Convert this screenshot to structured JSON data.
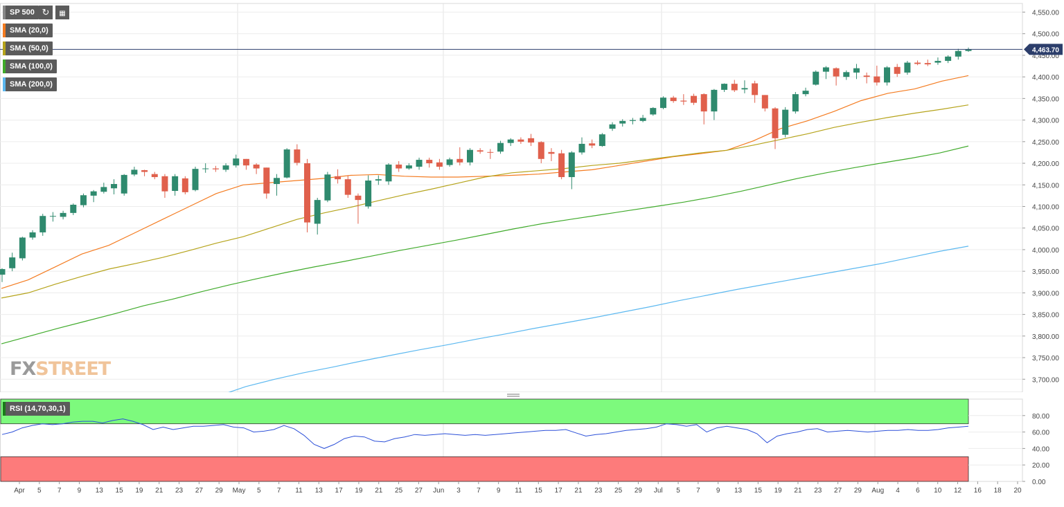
{
  "toolbar": {
    "symbol": "SP 500",
    "refresh_icon": "refresh-icon",
    "settings_icon": "calendar-icon"
  },
  "indicators": [
    {
      "label": "SMA (20,0)",
      "color": "#f47b20"
    },
    {
      "label": "SMA (50,0)",
      "color": "#b5a31a"
    },
    {
      "label": "SMA (100,0)",
      "color": "#3faa2a"
    },
    {
      "label": "SMA (200,0)",
      "color": "#5bb8f0"
    }
  ],
  "rsi_label": "RSI (14,70,30,1)",
  "watermark": {
    "fx": "FX",
    "street": "STREET"
  },
  "chart_data": {
    "type": "candlestick",
    "instrument": "SP 500",
    "price_ylim": [
      3670,
      4570
    ],
    "price_ticks": [
      "4,550.00",
      "4,500.00",
      "4,450.00",
      "4,400.00",
      "4,350.00",
      "4,300.00",
      "4,250.00",
      "4,200.00",
      "4,150.00",
      "4,100.00",
      "4,050.00",
      "4,000.00",
      "3,950.00",
      "3,900.00",
      "3,850.00",
      "3,800.00",
      "3,750.00",
      "3,700.00"
    ],
    "last_price": 4463.7,
    "last_price_label": "4,463.70",
    "x_labels": [
      "Apr",
      "5",
      "7",
      "9",
      "13",
      "15",
      "19",
      "21",
      "23",
      "27",
      "29",
      "May",
      "5",
      "7",
      "11",
      "13",
      "17",
      "19",
      "21",
      "25",
      "27",
      "Jun",
      "3",
      "7",
      "9",
      "11",
      "15",
      "17",
      "21",
      "23",
      "25",
      "29",
      "Jul",
      "5",
      "7",
      "9",
      "13",
      "15",
      "19",
      "21",
      "23",
      "27",
      "29",
      "Aug",
      "4",
      "6",
      "10",
      "12",
      "16",
      "18",
      "20"
    ],
    "candles": [
      [
        3942,
        3955,
        3925,
        3957
      ],
      [
        3957,
        3982,
        3950,
        3993
      ],
      [
        3980,
        4028,
        3975,
        4030
      ],
      [
        4028,
        4040,
        4023,
        4045
      ],
      [
        4040,
        4078,
        4032,
        4083
      ],
      [
        4078,
        4078,
        4065,
        4087
      ],
      [
        4076,
        4085,
        4070,
        4090
      ],
      [
        4085,
        4104,
        4080,
        4107
      ],
      [
        4103,
        4126,
        4098,
        4130
      ],
      [
        4125,
        4135,
        4110,
        4138
      ],
      [
        4134,
        4145,
        4130,
        4155
      ],
      [
        4142,
        4152,
        4128,
        4163
      ],
      [
        4130,
        4173,
        4125,
        4175
      ],
      [
        4174,
        4185,
        4170,
        4192
      ],
      [
        4184,
        4180,
        4170,
        4185
      ],
      [
        4175,
        4168,
        4163,
        4180
      ],
      [
        4170,
        4135,
        4120,
        4175
      ],
      [
        4136,
        4170,
        4125,
        4175
      ],
      [
        4165,
        4133,
        4128,
        4170
      ],
      [
        4138,
        4187,
        4135,
        4192
      ],
      [
        4187,
        4188,
        4178,
        4200
      ],
      [
        4188,
        4186,
        4180,
        4194
      ],
      [
        4185,
        4195,
        4180,
        4200
      ],
      [
        4195,
        4211,
        4190,
        4220
      ],
      [
        4210,
        4195,
        4185,
        4210
      ],
      [
        4197,
        4188,
        4175,
        4200
      ],
      [
        4190,
        4130,
        4118,
        4190
      ],
      [
        4152,
        4166,
        4125,
        4175
      ],
      [
        4167,
        4232,
        4165,
        4235
      ],
      [
        4232,
        4201,
        4195,
        4244
      ],
      [
        4200,
        4063,
        4040,
        4210
      ],
      [
        4060,
        4115,
        4035,
        4120
      ],
      [
        4114,
        4174,
        4110,
        4180
      ],
      [
        4170,
        4163,
        4153,
        4186
      ],
      [
        4163,
        4127,
        4120,
        4172
      ],
      [
        4125,
        4115,
        4060,
        4130
      ],
      [
        4100,
        4160,
        4095,
        4172
      ],
      [
        4160,
        4163,
        4150,
        4172
      ],
      [
        4158,
        4197,
        4150,
        4200
      ],
      [
        4197,
        4188,
        4180,
        4205
      ],
      [
        4188,
        4195,
        4185,
        4200
      ],
      [
        4192,
        4208,
        4185,
        4213
      ],
      [
        4208,
        4200,
        4190,
        4213
      ],
      [
        4202,
        4192,
        4185,
        4210
      ],
      [
        4196,
        4209,
        4192,
        4213
      ],
      [
        4210,
        4202,
        4195,
        4237
      ],
      [
        4202,
        4231,
        4195,
        4235
      ],
      [
        4230,
        4227,
        4222,
        4235
      ],
      [
        4226,
        4225,
        4210,
        4233
      ],
      [
        4227,
        4247,
        4222,
        4252
      ],
      [
        4247,
        4255,
        4240,
        4258
      ],
      [
        4255,
        4250,
        4245,
        4260
      ],
      [
        4258,
        4248,
        4240,
        4268
      ],
      [
        4249,
        4210,
        4200,
        4251
      ],
      [
        4226,
        4222,
        4205,
        4235
      ],
      [
        4223,
        4168,
        4163,
        4231
      ],
      [
        4168,
        4225,
        4140,
        4228
      ],
      [
        4225,
        4245,
        4220,
        4260
      ],
      [
        4246,
        4241,
        4235,
        4255
      ],
      [
        4240,
        4267,
        4238,
        4270
      ],
      [
        4280,
        4290,
        4275,
        4295
      ],
      [
        4292,
        4298,
        4285,
        4302
      ],
      [
        4298,
        4300,
        4290,
        4305
      ],
      [
        4298,
        4305,
        4295,
        4312
      ],
      [
        4313,
        4328,
        4310,
        4330
      ],
      [
        4328,
        4352,
        4325,
        4355
      ],
      [
        4352,
        4344,
        4340,
        4356
      ],
      [
        4345,
        4343,
        4335,
        4360
      ],
      [
        4356,
        4340,
        4335,
        4361
      ],
      [
        4360,
        4320,
        4290,
        4362
      ],
      [
        4320,
        4370,
        4300,
        4372
      ],
      [
        4370,
        4384,
        4365,
        4385
      ],
      [
        4384,
        4369,
        4365,
        4393
      ],
      [
        4371,
        4374,
        4362,
        4392
      ],
      [
        4385,
        4358,
        4340,
        4391
      ],
      [
        4358,
        4327,
        4320,
        4358
      ],
      [
        4327,
        4258,
        4233,
        4330
      ],
      [
        4266,
        4324,
        4260,
        4330
      ],
      [
        4320,
        4360,
        4315,
        4365
      ],
      [
        4360,
        4368,
        4355,
        4375
      ],
      [
        4382,
        4412,
        4380,
        4415
      ],
      [
        4412,
        4422,
        4395,
        4425
      ],
      [
        4420,
        4401,
        4380,
        4422
      ],
      [
        4400,
        4411,
        4393,
        4415
      ],
      [
        4410,
        4420,
        4395,
        4430
      ],
      [
        4403,
        4400,
        4385,
        4410
      ],
      [
        4401,
        4387,
        4380,
        4426
      ],
      [
        4387,
        4422,
        4380,
        4425
      ],
      [
        4423,
        4407,
        4400,
        4430
      ],
      [
        4410,
        4433,
        4405,
        4437
      ],
      [
        4433,
        4430,
        4427,
        4438
      ],
      [
        4432,
        4429,
        4425,
        4440
      ],
      [
        4433,
        4437,
        4428,
        4445
      ],
      [
        4437,
        4447,
        4432,
        4450
      ],
      [
        4447,
        4460,
        4440,
        4465
      ],
      [
        4460,
        4464,
        4458,
        4468
      ]
    ],
    "series": [
      {
        "name": "SMA (20,0)",
        "color": "#f47b20",
        "values": [
          3910,
          3930,
          3960,
          3990,
          4010,
          4040,
          4070,
          4100,
          4130,
          4150,
          4155,
          4160,
          4165,
          4172,
          4174,
          4170,
          4168,
          4168,
          4170,
          4172,
          4175,
          4180,
          4185,
          4195,
          4205,
          4215,
          4222,
          4230,
          4252,
          4280,
          4298,
          4320,
          4345,
          4362,
          4372,
          4390,
          4403
        ]
      },
      {
        "name": "SMA (50,0)",
        "color": "#b5a31a",
        "values": [
          3888,
          3900,
          3920,
          3938,
          3955,
          3968,
          3982,
          3998,
          4015,
          4030,
          4050,
          4070,
          4085,
          4098,
          4113,
          4127,
          4140,
          4154,
          4168,
          4178,
          4183,
          4188,
          4195,
          4200,
          4208,
          4216,
          4224,
          4230,
          4242,
          4255,
          4268,
          4283,
          4295,
          4306,
          4316,
          4325,
          4335
        ]
      },
      {
        "name": "SMA (100,0)",
        "color": "#3faa2a",
        "values": [
          3782,
          3800,
          3818,
          3835,
          3852,
          3870,
          3885,
          3902,
          3918,
          3933,
          3947,
          3960,
          3972,
          3985,
          3998,
          4010,
          4022,
          4035,
          4048,
          4060,
          4070,
          4080,
          4090,
          4100,
          4110,
          4122,
          4135,
          4150,
          4165,
          4178,
          4190,
          4201,
          4212,
          4224,
          4240
        ]
      },
      {
        "name": "SMA (200,0)",
        "color": "#5bb8f0",
        "values": [
          3660,
          3683,
          3700,
          3715,
          3728,
          3742,
          3755,
          3768,
          3780,
          3793,
          3805,
          3818,
          3830,
          3842,
          3855,
          3868,
          3882,
          3895,
          3908,
          3920,
          3932,
          3944,
          3956,
          3968,
          3982,
          3996,
          4008
        ]
      }
    ],
    "rsi": {
      "name": "RSI (14,70,30,1)",
      "ylim": [
        0,
        100
      ],
      "ticks": [
        "80.00",
        "60.00",
        "40.00",
        "20.00",
        "0.00"
      ],
      "upper": 70,
      "lower": 30,
      "values": [
        57,
        60,
        65,
        68,
        70,
        69,
        70,
        72,
        73,
        73,
        71,
        74,
        76,
        73,
        69,
        63,
        66,
        63,
        65,
        67,
        67,
        68,
        69,
        66,
        65,
        60,
        61,
        63,
        68,
        64,
        56,
        45,
        40,
        45,
        52,
        55,
        54,
        49,
        48,
        52,
        54,
        57,
        56,
        57,
        58,
        57,
        56,
        57,
        56,
        57,
        58,
        59,
        60,
        61,
        62,
        62,
        63,
        59,
        55,
        57,
        58,
        60,
        62,
        63,
        64,
        66,
        70,
        69,
        67,
        69,
        60,
        65,
        67,
        65,
        63,
        58,
        47,
        55,
        58,
        60,
        63,
        64,
        60,
        61,
        62,
        61,
        60,
        61,
        62,
        62,
        63,
        62,
        62,
        63,
        65,
        66,
        67
      ]
    }
  }
}
